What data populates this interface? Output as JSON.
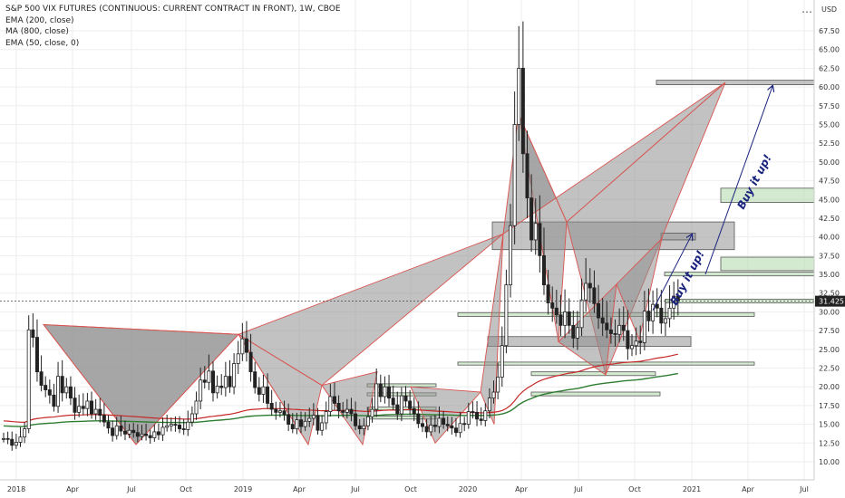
{
  "chart_data": {
    "type": "candlestick",
    "title": "S&P 500 VIX FUTURES (CONTINUOUS: CURRENT CONTRACT IN FRONT), 1W, CBOE",
    "indicators": [
      "EMA (200, close)",
      "MA (800, close)",
      "EMA (50, close, 0)"
    ],
    "currency": "USD",
    "ylim": [
      8.5,
      68.5
    ],
    "y_ticks": [
      "10.00",
      "12.50",
      "15.00",
      "17.50",
      "20.00",
      "22.50",
      "25.00",
      "27.50",
      "30.00",
      "32.50",
      "35.00",
      "37.50",
      "40.00",
      "42.50",
      "45.00",
      "47.50",
      "50.00",
      "52.50",
      "55.00",
      "57.50",
      "60.00",
      "62.50",
      "65.00",
      "67.50"
    ],
    "x_ticks": [
      "2018",
      "Apr",
      "Jul",
      "Oct",
      "2019",
      "Apr",
      "Jul",
      "Oct",
      "2020",
      "Apr",
      "Jul",
      "Oct",
      "2021",
      "Apr",
      "Jul"
    ],
    "last_price": "31.425",
    "annotations": [
      "Buy it up!",
      "Buy it up!"
    ],
    "colors": {
      "up": "#26a69a",
      "down": "#222222",
      "ema200": "#2e7d32",
      "ma800": "#c62828",
      "pattern_fill": "#8f8f8f",
      "pattern_edge": "#d9534f",
      "zone_green": "#b7dcb0",
      "zone_gray": "#9c9c9c",
      "arrow": "#1a237e"
    },
    "closes": [
      13.1,
      13.0,
      12.2,
      12.6,
      13.3,
      14.4,
      27.6,
      26.6,
      22.0,
      20.2,
      19.6,
      18.9,
      17.4,
      21.4,
      19.2,
      20.0,
      18.5,
      16.6,
      17.4,
      17.1,
      18.1,
      16.4,
      17.0,
      16.2,
      15.3,
      14.5,
      13.5,
      14.8,
      14.1,
      13.7,
      14.2,
      13.9,
      13.4,
      13.7,
      13.5,
      13.2,
      14.0,
      13.6,
      14.6,
      14.8,
      15.0,
      14.9,
      14.4,
      14.3,
      15.3,
      16.4,
      18.1,
      20.9,
      20.6,
      22.1,
      19.2,
      20.1,
      19.9,
      21.4,
      20.0,
      23.1,
      24.4,
      26.4,
      24.6,
      22.0,
      19.9,
      19.0,
      20.0,
      17.8,
      17.0,
      16.6,
      16.8,
      16.3,
      15.0,
      14.4,
      15.6,
      14.7,
      15.4,
      15.8,
      16.2,
      14.2,
      15.2,
      16.7,
      18.7,
      17.8,
      16.8,
      16.6,
      17.0,
      16.4,
      14.8,
      14.4,
      14.8,
      16.0,
      17.0,
      20.4,
      18.7,
      20.0,
      18.5,
      17.6,
      16.4,
      18.8,
      18.1,
      17.1,
      16.4,
      15.1,
      14.7,
      14.0,
      14.9,
      14.7,
      15.8,
      15.0,
      14.8,
      14.5,
      13.9,
      15.1,
      15.0,
      16.7,
      16.6,
      15.7,
      15.5,
      16.8,
      18.5,
      19.3,
      21.3,
      25.5,
      33.6,
      41.5,
      55.0,
      62.5,
      51.1,
      45.2,
      39.6,
      41.8,
      37.5,
      33.6,
      31.2,
      30.5,
      29.6,
      28.2,
      30.0,
      28.2,
      26.5,
      27.9,
      31.6,
      33.8,
      33.2,
      31.1,
      29.2,
      28.5,
      27.6,
      27.1,
      27.0,
      28.2,
      27.5,
      25.1,
      25.5,
      26.1,
      25.9,
      30.1,
      28.8,
      31.0,
      30.5,
      28.5,
      29.1,
      30.5,
      32.1,
      31.4
    ],
    "price_tag": "31.425"
  }
}
